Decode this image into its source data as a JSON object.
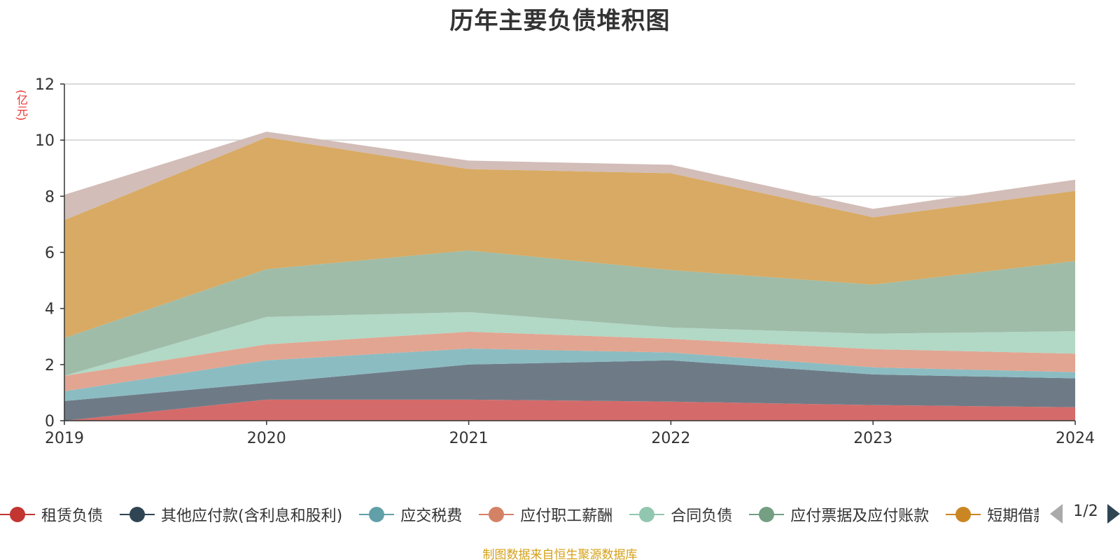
{
  "title": "历年主要负债堆积图",
  "unit_label": "(亿元)",
  "source_note": "制图数据来自恒生聚源数据库",
  "pager": {
    "label": "1/2"
  },
  "legend_items": [
    {
      "label": "租赁负债",
      "color": "#c23531"
    },
    {
      "label": "其他应付款(含利息和股利)",
      "color": "#2f4554"
    },
    {
      "label": "应交税费",
      "color": "#61a0a8"
    },
    {
      "label": "应付职工薪酬",
      "color": "#d48265"
    },
    {
      "label": "合同负债",
      "color": "#91c7ae"
    },
    {
      "label": "应付票据及应付账款",
      "color": "#749f83"
    },
    {
      "label": "短期借款",
      "color": "#ca8622"
    }
  ],
  "chart_data": {
    "type": "area",
    "stacked": true,
    "x": [
      "2019",
      "2020",
      "2021",
      "2022",
      "2023",
      "2024"
    ],
    "ylim": [
      0,
      12
    ],
    "yticks": [
      0,
      2,
      4,
      6,
      8,
      10,
      12
    ],
    "grid": true,
    "legend_position": "bottom",
    "series": [
      {
        "name": "租赁负债",
        "color": "#c23531",
        "fill": "#d46b6a",
        "values": [
          0,
          0.75,
          0.75,
          0.68,
          0.56,
          0.48
        ]
      },
      {
        "name": "其他应付款(含利息和股利)",
        "color": "#2f4554",
        "fill": "#6e7b87",
        "values": [
          0.7,
          0.6,
          1.25,
          1.47,
          1.09,
          1.03
        ]
      },
      {
        "name": "应交税费",
        "color": "#61a0a8",
        "fill": "#8bbcc2",
        "values": [
          0.35,
          0.8,
          0.57,
          0.28,
          0.25,
          0.22
        ]
      },
      {
        "name": "应付职工薪酬",
        "color": "#d48265",
        "fill": "#e2a591",
        "values": [
          0.55,
          0.57,
          0.6,
          0.49,
          0.65,
          0.66
        ]
      },
      {
        "name": "合同负债",
        "color": "#91c7ae",
        "fill": "#b2d8c6",
        "values": [
          0,
          0.98,
          0.7,
          0.4,
          0.55,
          0.8
        ]
      },
      {
        "name": "应付票据及应付账款",
        "color": "#749f83",
        "fill": "#9fbca8",
        "values": [
          1.35,
          1.7,
          2.2,
          2.05,
          1.75,
          2.5
        ]
      },
      {
        "name": "",
        "color": "#ca8622",
        "fill": "#d8aa63",
        "values": [
          4.2,
          4.7,
          2.9,
          3.45,
          2.4,
          2.5
        ]
      },
      {
        "name": "",
        "color": "#bda29a",
        "fill": "#d2bdb8",
        "values": [
          0.9,
          0.2,
          0.3,
          0.3,
          0.3,
          0.4
        ]
      }
    ]
  }
}
